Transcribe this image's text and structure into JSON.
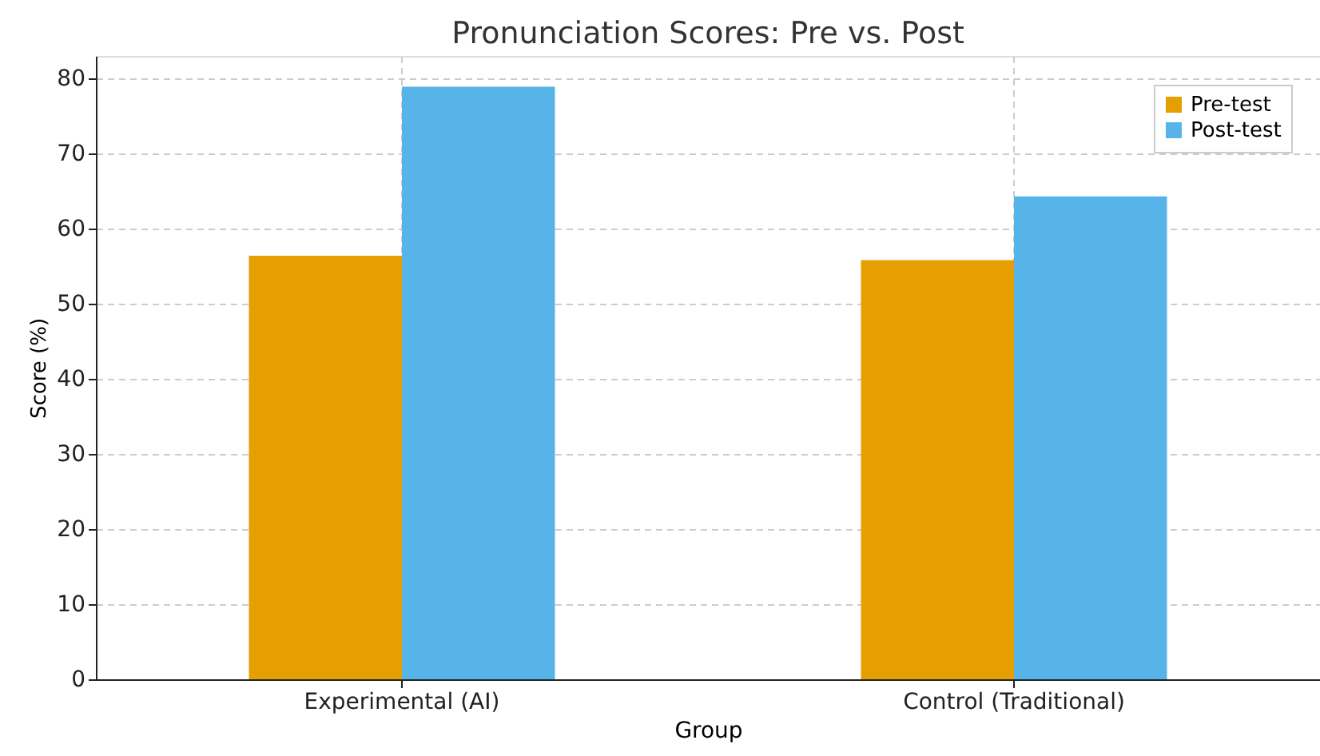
{
  "chart_data": {
    "type": "bar",
    "title": "Pronunciation Scores: Pre vs. Post",
    "xlabel": "Group",
    "ylabel": "Score (%)",
    "categories": [
      "Experimental (AI)",
      "Control (Traditional)"
    ],
    "series": [
      {
        "name": "Pre-test",
        "color": "#e69f00",
        "values": [
          56.4,
          55.8
        ]
      },
      {
        "name": "Post-test",
        "color": "#56b4e9",
        "values": [
          78.9,
          64.3
        ]
      }
    ],
    "ylim": [
      0,
      83
    ],
    "yticks": [
      0,
      10,
      20,
      30,
      40,
      50,
      60,
      70,
      80
    ],
    "grid": true,
    "legend": "top right"
  }
}
